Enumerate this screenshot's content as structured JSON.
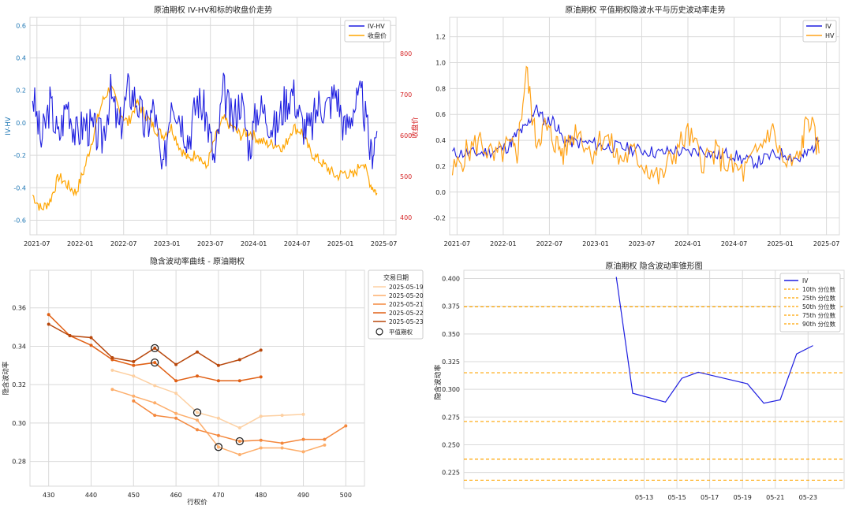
{
  "colors": {
    "iv": "#1f1fe0",
    "orange": "#ffa500",
    "hv": "#ffa31a",
    "blue": "#1f77b4",
    "red": "#d62728",
    "grid": "#d9d9d9",
    "smile": [
      "#fdd0a2",
      "#fdae6b",
      "#f4883d",
      "#e06015",
      "#b8470b"
    ]
  },
  "chart_data": [
    {
      "id": "p1",
      "type": "line",
      "title": "原油期权 IV-HV和标的收盘价走势",
      "xlabel": "",
      "ylabel": "IV-HV",
      "ylabel_right": "收盘价",
      "xlim": [
        2021.42,
        2025.64
      ],
      "ylim": [
        -0.69,
        0.65
      ],
      "ylim_right": [
        358,
        888
      ],
      "x_ticks": [
        2021.5,
        2022.0,
        2022.5,
        2023.0,
        2023.5,
        2024.0,
        2024.5,
        2025.0,
        2025.5
      ],
      "x_tick_labels": [
        "2021-07",
        "2022-01",
        "2022-07",
        "2023-01",
        "2023-07",
        "2024-01",
        "2024-07",
        "2025-01",
        "2025-07"
      ],
      "y_ticks": [
        -0.6,
        -0.4,
        -0.2,
        0.0,
        0.2,
        0.4,
        0.6
      ],
      "y_tick_labels": [
        "-0.6",
        "-0.4",
        "-0.2",
        "0.0",
        "0.2",
        "0.4",
        "0.6"
      ],
      "y_right_ticks": [
        400,
        500,
        600,
        700,
        800
      ],
      "y_right_tick_labels": [
        "400",
        "500",
        "600",
        "700",
        "800"
      ],
      "legend": [
        "IV-HV",
        "收盘价"
      ],
      "legend_position": "top-right",
      "series": [
        {
          "name": "IV-HV",
          "axis": "left",
          "x": [
            2021.45,
            2021.55,
            2021.65,
            2021.75,
            2021.85,
            2021.95,
            2022.05,
            2022.15,
            2022.25,
            2022.35,
            2022.45,
            2022.55,
            2022.65,
            2022.75,
            2022.85,
            2022.95,
            2023.05,
            2023.15,
            2023.25,
            2023.35,
            2023.45,
            2023.55,
            2023.65,
            2023.75,
            2023.85,
            2023.95,
            2024.05,
            2024.15,
            2024.25,
            2024.35,
            2024.45,
            2024.55,
            2024.65,
            2024.75,
            2024.85,
            2024.95,
            2025.05,
            2025.15,
            2025.25,
            2025.35,
            2025.42
          ],
          "y": [
            0.18,
            -0.12,
            0.12,
            -0.1,
            0.14,
            -0.08,
            0.0,
            -0.05,
            -0.1,
            0.18,
            -0.05,
            0.2,
            0.15,
            -0.05,
            0.1,
            -0.35,
            0.18,
            0.05,
            -0.1,
            0.15,
            0.05,
            -0.25,
            0.2,
            0.0,
            0.15,
            -0.15,
            0.1,
            0.05,
            -0.05,
            0.12,
            0.2,
            0.0,
            -0.05,
            0.12,
            0.1,
            0.2,
            -0.05,
            0.1,
            0.15,
            -0.2,
            -0.05
          ]
        },
        {
          "name": "收盘价",
          "axis": "right",
          "x": [
            2021.45,
            2021.55,
            2021.65,
            2021.75,
            2021.85,
            2021.95,
            2022.05,
            2022.15,
            2022.25,
            2022.35,
            2022.45,
            2022.55,
            2022.65,
            2022.75,
            2022.85,
            2022.95,
            2023.05,
            2023.15,
            2023.25,
            2023.35,
            2023.45,
            2023.55,
            2023.65,
            2023.75,
            2023.85,
            2023.95,
            2024.05,
            2024.15,
            2024.25,
            2024.35,
            2024.45,
            2024.55,
            2024.65,
            2024.75,
            2024.85,
            2024.95,
            2025.05,
            2025.15,
            2025.25,
            2025.35,
            2025.42
          ],
          "y": [
            455,
            420,
            440,
            500,
            480,
            460,
            520,
            600,
            680,
            720,
            660,
            630,
            680,
            650,
            620,
            600,
            620,
            570,
            540,
            560,
            520,
            590,
            640,
            620,
            600,
            610,
            590,
            580,
            580,
            570,
            620,
            610,
            560,
            540,
            520,
            500,
            510,
            500,
            540,
            480,
            460
          ]
        }
      ]
    },
    {
      "id": "p2",
      "type": "line",
      "title": "原油期权 平值期权隐波水平与历史波动率走势",
      "xlabel": "",
      "ylabel": "",
      "xlim": [
        2021.42,
        2025.64
      ],
      "ylim": [
        -0.33,
        1.35
      ],
      "x_ticks": [
        2021.5,
        2022.0,
        2022.5,
        2023.0,
        2023.5,
        2024.0,
        2024.5,
        2025.0,
        2025.5
      ],
      "x_tick_labels": [
        "2021-07",
        "2022-01",
        "2022-07",
        "2023-01",
        "2023-07",
        "2024-01",
        "2024-07",
        "2025-01",
        "2025-07"
      ],
      "y_ticks": [
        -0.2,
        0.0,
        0.2,
        0.4,
        0.6,
        0.8,
        1.0,
        1.2
      ],
      "y_tick_labels": [
        "-0.2",
        "0.0",
        "0.2",
        "0.4",
        "0.6",
        "0.8",
        "1.0",
        "1.2"
      ],
      "legend": [
        "IV",
        "HV"
      ],
      "legend_position": "top-right",
      "series": [
        {
          "name": "IV",
          "x": [
            2021.45,
            2021.6,
            2021.75,
            2021.9,
            2022.05,
            2022.15,
            2022.25,
            2022.35,
            2022.45,
            2022.55,
            2022.65,
            2022.8,
            2022.95,
            2023.1,
            2023.25,
            2023.4,
            2023.55,
            2023.7,
            2023.85,
            2024.0,
            2024.15,
            2024.3,
            2024.45,
            2024.6,
            2024.75,
            2024.9,
            2025.05,
            2025.2,
            2025.3,
            2025.42
          ],
          "y": [
            0.3,
            0.3,
            0.3,
            0.32,
            0.35,
            0.45,
            0.5,
            0.65,
            0.55,
            0.55,
            0.4,
            0.38,
            0.38,
            0.35,
            0.35,
            0.33,
            0.32,
            0.3,
            0.32,
            0.3,
            0.33,
            0.28,
            0.3,
            0.25,
            0.23,
            0.28,
            0.3,
            0.25,
            0.3,
            0.4
          ]
        },
        {
          "name": "HV",
          "x": [
            2021.45,
            2021.6,
            2021.75,
            2021.9,
            2022.05,
            2022.15,
            2022.25,
            2022.35,
            2022.45,
            2022.55,
            2022.65,
            2022.8,
            2022.95,
            2023.1,
            2023.25,
            2023.4,
            2023.55,
            2023.7,
            2023.85,
            2024.0,
            2024.15,
            2024.3,
            2024.45,
            2024.6,
            2024.75,
            2024.9,
            2025.05,
            2025.2,
            2025.3,
            2025.42
          ],
          "y": [
            0.15,
            0.3,
            0.4,
            0.25,
            0.35,
            0.3,
            0.95,
            0.4,
            0.5,
            0.4,
            0.3,
            0.5,
            0.3,
            0.45,
            0.25,
            0.3,
            0.2,
            0.1,
            0.3,
            0.45,
            0.25,
            0.3,
            0.2,
            0.15,
            0.3,
            0.5,
            0.2,
            0.25,
            0.6,
            0.3
          ]
        }
      ]
    },
    {
      "id": "p3",
      "type": "line",
      "title": "隐含波动率曲线 - 原油期权",
      "xlabel": "行权价",
      "ylabel": "隐含波动率",
      "xlim": [
        425.6,
        504.4
      ],
      "ylim": [
        0.2671,
        0.3796
      ],
      "x_ticks": [
        430,
        440,
        450,
        460,
        470,
        480,
        490,
        500
      ],
      "x_tick_labels": [
        "430",
        "440",
        "450",
        "460",
        "470",
        "480",
        "490",
        "500"
      ],
      "y_ticks": [
        0.28,
        0.3,
        0.32,
        0.34,
        0.36
      ],
      "y_tick_labels": [
        "0.28",
        "0.30",
        "0.32",
        "0.34",
        "0.36"
      ],
      "legend_title": "交易日期",
      "legend_position": "top-right",
      "atm_label": "平值期权",
      "series": [
        {
          "name": "2025-05-19",
          "x": [
            445,
            450,
            455,
            460,
            465,
            470,
            475,
            480,
            485,
            490
          ],
          "y": [
            0.3275,
            0.3245,
            0.3195,
            0.3155,
            0.3055,
            0.3025,
            0.2975,
            0.3035,
            0.304,
            0.3045
          ],
          "atm": 465
        },
        {
          "name": "2025-05-20",
          "x": [
            445,
            450,
            455,
            460,
            465,
            470,
            475,
            480,
            485,
            490,
            495
          ],
          "y": [
            0.3175,
            0.314,
            0.3105,
            0.305,
            0.3015,
            0.2875,
            0.2835,
            0.287,
            0.287,
            0.285,
            0.2885
          ],
          "atm": 470
        },
        {
          "name": "2025-05-21",
          "x": [
            450,
            455,
            460,
            465,
            470,
            475,
            480,
            485,
            490,
            495,
            500
          ],
          "y": [
            0.3115,
            0.304,
            0.3025,
            0.2965,
            0.2935,
            0.2905,
            0.291,
            0.2895,
            0.2915,
            0.2915,
            0.2985
          ],
          "atm": 475
        },
        {
          "name": "2025-05-22",
          "x": [
            430,
            435,
            440,
            445,
            450,
            455,
            460,
            465,
            470,
            475,
            480
          ],
          "y": [
            0.3565,
            0.3455,
            0.3405,
            0.333,
            0.33,
            0.3315,
            0.322,
            0.3245,
            0.322,
            0.322,
            0.324
          ],
          "atm": 455
        },
        {
          "name": "2025-05-23",
          "x": [
            430,
            435,
            440,
            445,
            450,
            455,
            460,
            465,
            470,
            475,
            480
          ],
          "y": [
            0.3515,
            0.3455,
            0.3445,
            0.334,
            0.332,
            0.339,
            0.3305,
            0.337,
            0.33,
            0.333,
            0.338
          ],
          "atm": 455
        }
      ]
    },
    {
      "id": "p4",
      "type": "line",
      "title": "原油期权 隐含波动率锥形图",
      "xlabel": "",
      "ylabel": "隐含波动率",
      "xlim": [
        2.0,
        25.2
      ],
      "ylim": [
        0.2105,
        0.4075
      ],
      "x_ticks": [
        13,
        15,
        17,
        19,
        21,
        23
      ],
      "x_tick_labels": [
        "05-13",
        "05-15",
        "05-17",
        "05-19",
        "05-21",
        "05-23"
      ],
      "y_ticks": [
        0.225,
        0.25,
        0.275,
        0.3,
        0.325,
        0.35,
        0.375,
        0.4
      ],
      "y_tick_labels": [
        "0.225",
        "0.250",
        "0.275",
        "0.300",
        "0.325",
        "0.350",
        "0.375",
        "0.400"
      ],
      "legend_position": "top-right",
      "series": [
        {
          "name": "IV",
          "x": [
            11.3,
            12.3,
            14.3,
            15.3,
            16.3,
            17.3,
            19.3,
            20.3,
            21.3,
            22.3,
            23.3
          ],
          "y": [
            0.4015,
            0.2965,
            0.2885,
            0.31,
            0.3155,
            0.312,
            0.305,
            0.2875,
            0.2905,
            0.332,
            0.3395
          ]
        }
      ],
      "percentiles": [
        {
          "name": "10th 分位数",
          "value": 0.218
        },
        {
          "name": "25th 分位数",
          "value": 0.237
        },
        {
          "name": "50th 分位数",
          "value": 0.271
        },
        {
          "name": "75th 分位数",
          "value": 0.315
        },
        {
          "name": "90th 分位数",
          "value": 0.3745
        }
      ]
    }
  ]
}
